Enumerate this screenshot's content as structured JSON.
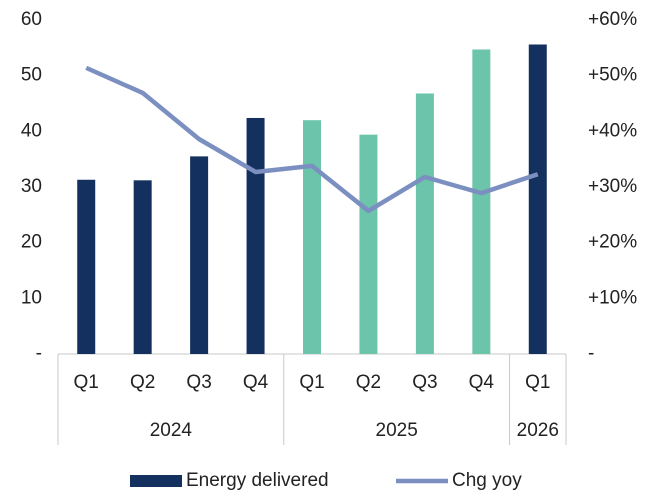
{
  "chart_data": {
    "type": "bar-line",
    "groups": [
      {
        "label": "2024",
        "color": "#14305f",
        "categories": [
          "Q1",
          "Q2",
          "Q3",
          "Q4"
        ]
      },
      {
        "label": "2025",
        "color": "#6cc4ab",
        "categories": [
          "Q1",
          "Q2",
          "Q3",
          "Q4"
        ]
      },
      {
        "label": "2026",
        "color": "#14305f",
        "categories": [
          "Q1"
        ]
      }
    ],
    "series": [
      {
        "name": "Energy delivered",
        "type": "bar",
        "color": "#14305f",
        "values": [
          31.3,
          31.2,
          35.5,
          42.4,
          42.0,
          39.4,
          46.8,
          54.7,
          55.6
        ]
      },
      {
        "name": "Chg yoy",
        "type": "line",
        "axis": "y2",
        "color": "#7b8fc0",
        "values": [
          51.4,
          46.9,
          38.6,
          32.7,
          33.8,
          25.7,
          31.8,
          28.9,
          32.3
        ]
      }
    ],
    "ylim": [
      0,
      60
    ],
    "yticks": [
      {
        "value": 0,
        "label": "-"
      },
      10,
      20,
      30,
      40,
      50,
      60
    ],
    "y2lim": [
      0,
      60
    ],
    "y2ticks": [
      {
        "value": 0,
        "label": "-"
      },
      {
        "value": 10,
        "label": "+10%"
      },
      {
        "value": 20,
        "label": "+20%"
      },
      {
        "value": 30,
        "label": "+30%"
      },
      {
        "value": 40,
        "label": "+40%"
      },
      {
        "value": 50,
        "label": "+50%"
      },
      {
        "value": 60,
        "label": "+60%"
      }
    ],
    "grid": false,
    "legend": "bottom"
  }
}
